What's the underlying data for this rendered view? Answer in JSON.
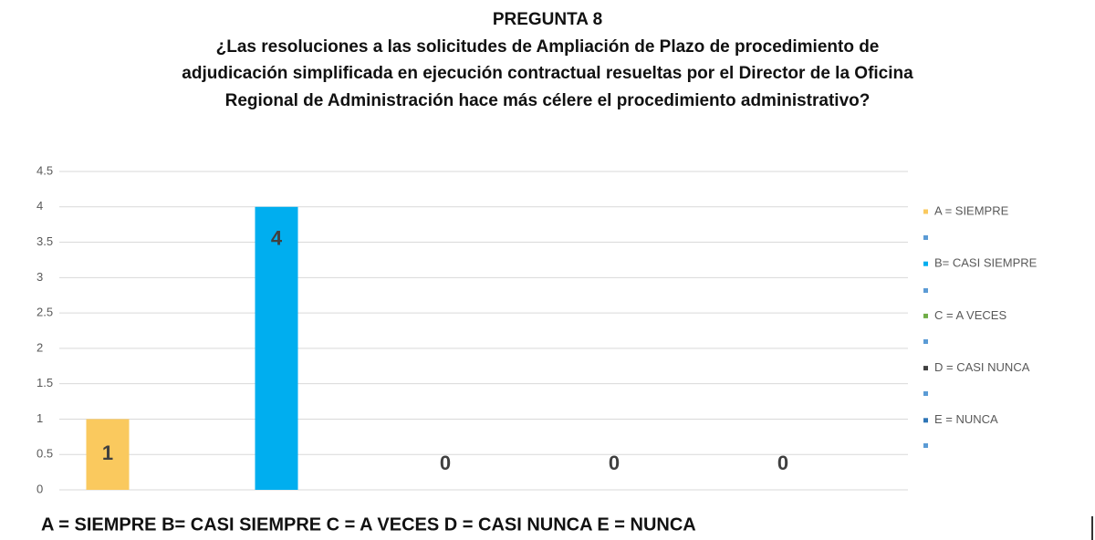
{
  "chart_data": {
    "type": "bar",
    "title": "PREGUNTA 8",
    "subtitle": [
      "¿Las resoluciones a las solicitudes de Ampliación de Plazo de procedimiento de",
      "adjudicación simplificada en ejecución contractual resueltas por el Director de la Oficina",
      "Regional de Administración hace más célere el procedimiento administrativo?"
    ],
    "annotation": "A = SIEMPRE B= CASI SIEMPRE  C = A VECES  D = CASI NUNCA  E = NUNCA",
    "categories": [
      null
    ],
    "series": [
      {
        "name": "A = SIEMPRE",
        "color": "#fac95e",
        "values": [
          1
        ]
      },
      {
        "name": "B= CASI SIEMPRE",
        "color": "#00aeef",
        "values": [
          4
        ]
      },
      {
        "name": "C = A VECES",
        "color": "#70ad47",
        "values": [
          0
        ]
      },
      {
        "name": "D = CASI NUNCA",
        "color": "#404040",
        "values": [
          0
        ]
      },
      {
        "name": "E = NUNCA",
        "color": "#2e75b6",
        "values": [
          0
        ]
      }
    ],
    "ylim": [
      0,
      4.5
    ],
    "yticks": [
      0,
      0.5,
      1,
      1.5,
      2,
      2.5,
      3,
      3.5,
      4,
      4.5
    ],
    "grid": true,
    "legend": "right"
  }
}
